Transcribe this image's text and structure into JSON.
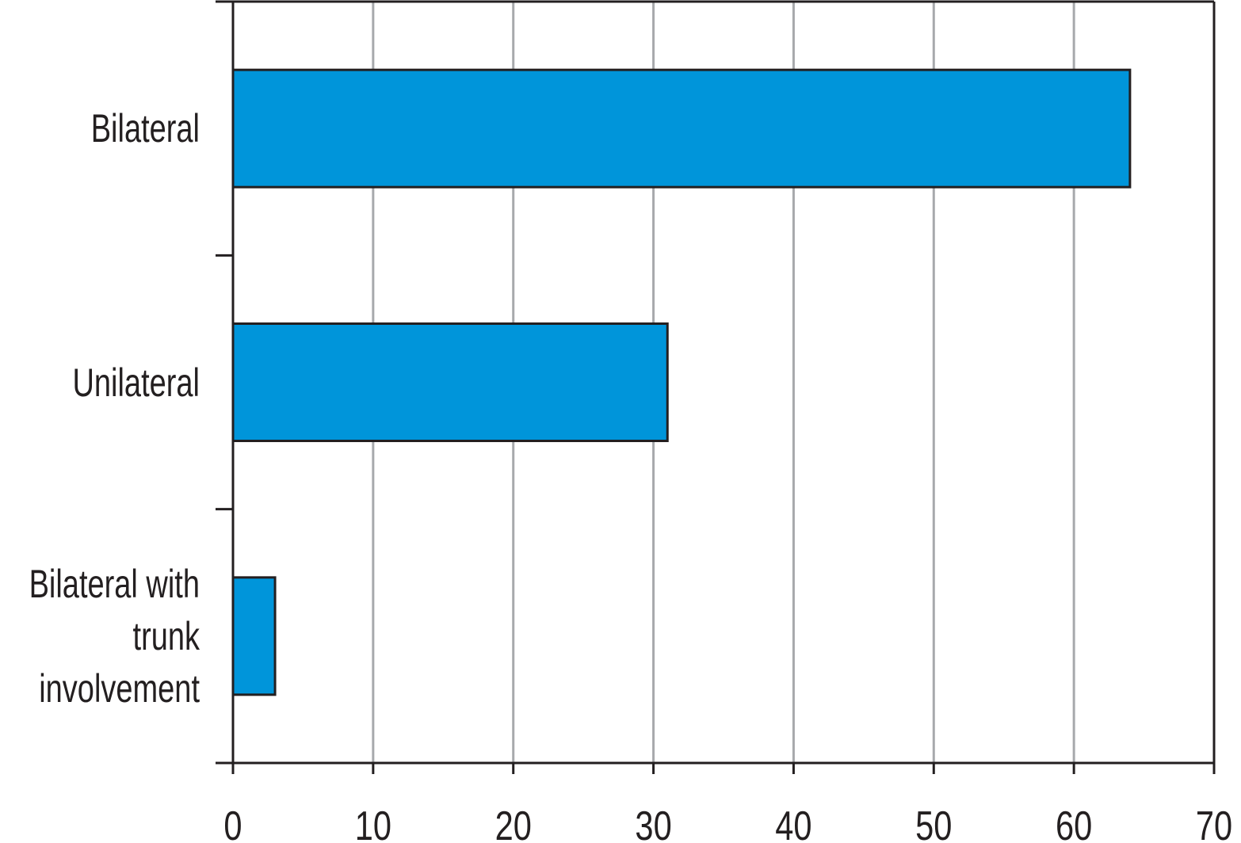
{
  "chart_data": {
    "type": "bar",
    "orientation": "horizontal",
    "categories": [
      "Bilateral",
      "Unilateral",
      "Bilateral with trunk involvement"
    ],
    "values": [
      64,
      31,
      3
    ],
    "color": "#0095da",
    "xlim": [
      0,
      70
    ],
    "xticks": [
      0,
      10,
      20,
      30,
      40,
      50,
      60,
      70
    ],
    "grid": true
  }
}
